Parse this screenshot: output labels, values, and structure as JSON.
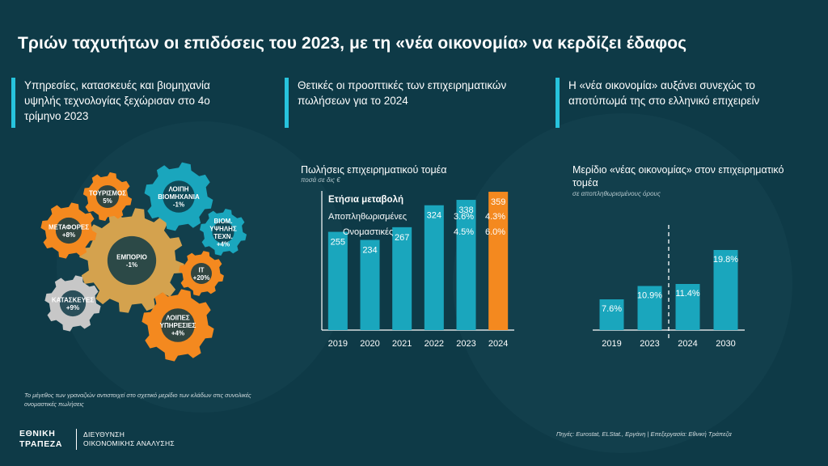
{
  "title": "Τριών ταχυτήτων οι επιδόσεις του 2023, με τη «νέα οικονομία» να κερδίζει έδαφος",
  "headlines": [
    {
      "line1": "Υπηρεσίες, κατασκευές και βιομηχανία",
      "line2": "υψηλής τεχνολογίας ξεχώρισαν στο 4ο",
      "line3": "τρίμηνο 2023"
    },
    {
      "line1": "Θετικές οι προοπτικές των επιχειρηματικών",
      "line2": "πωλήσεων για το 2024",
      "line3": ""
    },
    {
      "line1": "Η «νέα οικονομία» αυξάνει συνεχώς το",
      "line2": "αποτύπωμά της στο ελληνικό επιχειρείν",
      "line3": ""
    }
  ],
  "colors": {
    "background": "#0e3a47",
    "teal": "#1aa6bd",
    "orange": "#f4891f",
    "gold": "#d4a24e",
    "grey": "#c7c7c7",
    "accent": "#27c3dd"
  },
  "chart_data": [
    {
      "type": "gears",
      "items": [
        {
          "label": "ΕΜΠΟΡΙΟ",
          "value": "-1%",
          "color": "gold"
        },
        {
          "label": "ΤΟΥΡΙΣΜΟΣ",
          "value": "5%",
          "color": "orange"
        },
        {
          "label": "ΛΟΙΠΗ ΒΙΟΜΗΧΑΝΙΑ",
          "value": "-1%",
          "color": "teal"
        },
        {
          "label": "ΜΕΤΑΦΟΡΕΣ",
          "value": "+8%",
          "color": "orange"
        },
        {
          "label": "ΒΙΟΜ. ΥΨΗΛΗΣ ΤΕΧΝ.",
          "value": "+4%",
          "color": "teal"
        },
        {
          "label": "IT",
          "value": "+20%",
          "color": "orange"
        },
        {
          "label": "ΚΑΤΑΣΚΕΥΕΣ",
          "value": "+9%",
          "color": "grey"
        },
        {
          "label": "ΛΟΙΠΕΣ ΥΠΗΡΕΣΙΕΣ",
          "value": "+4%",
          "color": "orange"
        }
      ],
      "note": "Το μέγεθος των γραναζιών αντιστοιχεί στο σχετικό μερίδιο των κλάδων στις συνολικές ονομαστικές πωλήσεις"
    },
    {
      "type": "bar",
      "title": "Πωλήσεις επιχειρηματικού τομέα",
      "subtitle": "ποσά σε δις €",
      "categories": [
        "2019",
        "2020",
        "2021",
        "2022",
        "2023",
        "2024"
      ],
      "values": [
        255,
        234,
        267,
        324,
        338,
        359
      ],
      "highlight_last": true,
      "ylim": [
        0,
        420
      ],
      "annotation": {
        "heading": "Ετήσια μεταβολή",
        "rows": [
          {
            "label": "Αποπληθωρισμένες",
            "v2023": "3.6%",
            "v2024": "4.3%"
          },
          {
            "label": "Ονομαστικές",
            "v2023": "4.5%",
            "v2024": "6.0%"
          }
        ]
      }
    },
    {
      "type": "bar",
      "title": "Μερίδιο «νέας οικονομίας» στον επιχειρηματικό τομέα",
      "subtitle": "σε αποπληθωρισμένους όρους",
      "categories": [
        "2019",
        "2023",
        "2024",
        "2030"
      ],
      "values": [
        7.6,
        10.9,
        11.4,
        19.8
      ],
      "value_labels": [
        "7.6%",
        "10.9%",
        "11.4%",
        "19.8%"
      ],
      "ylim": [
        0,
        24
      ],
      "divider_between": [
        "2023",
        "2024"
      ]
    }
  ],
  "source": "Πηγές: Eurostat, ELStat., Εργάνη | Επεξεργασία: Εθνική Τράπεζα",
  "logo": {
    "name_line1": "ΕΘΝΙΚΗ",
    "name_line2": "ΤΡΑΠΕΖΑ",
    "dept_line1": "ΔΙΕΥΘΥΝΣΗ",
    "dept_line2": "ΟΙΚΟΝΟΜΙΚΗΣ ΑΝΑΛΥΣΗΣ"
  }
}
